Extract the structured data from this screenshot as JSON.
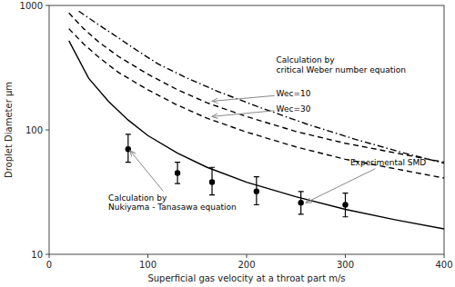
{
  "chart_data": {
    "type": "line",
    "xlabel": "Superficial gas velocity at a throat part m/s",
    "ylabel": "Droplet Diameter μm",
    "xlim": [
      0,
      400
    ],
    "ylim": [
      10,
      1000
    ],
    "xticks": [
      0,
      100,
      200,
      300,
      400
    ],
    "yticks": [
      10,
      100,
      1000
    ],
    "log": "y",
    "grid": false,
    "series": [
      {
        "type": "line",
        "line_style": "solid",
        "color": "#000000",
        "x": [
          20,
          40,
          60,
          80,
          100,
          130,
          160,
          200,
          250,
          300,
          350,
          400
        ],
        "values": [
          520,
          260,
          170,
          120,
          90,
          65,
          50,
          38,
          29,
          23,
          19,
          16
        ]
      },
      {
        "type": "line",
        "line_style": "dashed",
        "color": "#000000",
        "x": [
          20,
          35,
          50,
          70,
          100,
          130,
          160,
          200,
          250,
          300,
          400
        ],
        "values": [
          870,
          650,
          510,
          390,
          280,
          210,
          165,
          128,
          97,
          78,
          55
        ]
      },
      {
        "type": "line",
        "line_style": "dashed",
        "color": "#000000",
        "x": [
          20,
          35,
          50,
          70,
          100,
          130,
          160,
          200,
          250,
          300,
          400
        ],
        "values": [
          650,
          490,
          385,
          290,
          210,
          158,
          124,
          96,
          73,
          58,
          41
        ]
      },
      {
        "type": "line",
        "line_style": "dashdot",
        "color": "#000000",
        "x": [
          30,
          50,
          70,
          90,
          110,
          140,
          170,
          210,
          260,
          310,
          360,
          400
        ],
        "values": [
          900,
          700,
          550,
          430,
          340,
          260,
          205,
          155,
          112,
          84,
          65,
          54
        ]
      },
      {
        "type": "scatter",
        "marker": "circle",
        "color": "#000000",
        "x": [
          80,
          130,
          165,
          210,
          255,
          300
        ],
        "values": [
          70,
          45,
          38,
          32,
          26,
          25
        ],
        "error_lower": [
          15,
          8,
          8,
          7,
          5,
          5
        ],
        "error_upper": [
          22,
          10,
          12,
          10,
          6,
          6
        ]
      }
    ],
    "annotations": [
      {
        "text": "Calculation by\ncritical Weber number equation",
        "x": 230,
        "y": 280
      },
      {
        "text": "Wec=10",
        "x": 230,
        "y": 195,
        "arrow_x": 165,
        "arrow_y": 170,
        "color": "#888888"
      },
      {
        "text": "Wec=30",
        "x": 230,
        "y": 148,
        "arrow_x": 165,
        "arrow_y": 128,
        "color": "#888888"
      },
      {
        "text": "Calculation by\nNukiyama - Tanasawa equation",
        "x": 60,
        "y": 22,
        "arrow_x": 82,
        "arrow_y": 68,
        "color": "#888888"
      },
      {
        "text": "Experimental SMD",
        "x": 305,
        "y": 55,
        "arrow_x": 260,
        "arrow_y": 26,
        "color": "#888888"
      }
    ]
  }
}
